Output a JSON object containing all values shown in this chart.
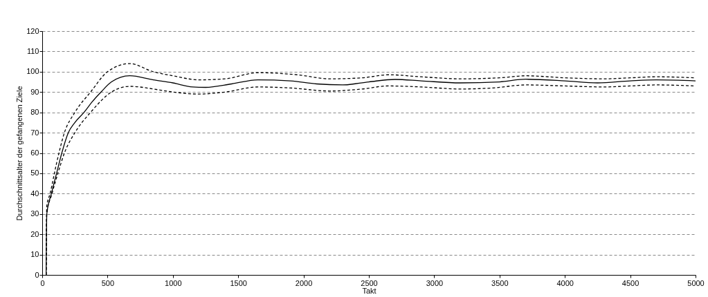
{
  "chart_data": {
    "type": "line",
    "xlabel": "Takt",
    "ylabel": "Durchschnittsalter der gefangenen Ziele",
    "xlim": [
      0,
      5000
    ],
    "ylim": [
      0,
      120
    ],
    "xticks": [
      0,
      500,
      1000,
      1500,
      2000,
      2500,
      3000,
      3500,
      4000,
      4500,
      5000
    ],
    "yticks": [
      0,
      10,
      20,
      30,
      40,
      50,
      60,
      70,
      80,
      90,
      100,
      110,
      120
    ],
    "grid": "y",
    "marker": "none",
    "series": [
      {
        "color": "#000000",
        "line_style": "solid",
        "x": [
          30,
          35,
          70,
          110,
          150,
          200,
          250,
          320,
          380,
          450,
          530,
          670,
          850,
          1000,
          1150,
          1250,
          1450,
          1650,
          1900,
          2100,
          2300,
          2500,
          2700,
          2900,
          3200,
          3500,
          3700,
          4000,
          4250,
          4500,
          4700,
          5000
        ],
        "values": [
          0,
          30,
          40,
          50,
          60,
          70,
          75,
          80,
          85,
          90,
          95,
          98,
          96,
          94.5,
          92.5,
          92.3,
          94,
          96,
          95.5,
          94,
          93.5,
          95,
          96.2,
          95.5,
          94.5,
          95,
          96.3,
          95.5,
          94.5,
          95.5,
          96,
          95.5
        ]
      },
      {
        "color": "#000000",
        "line_style": "dashed",
        "x": [
          30,
          35,
          60,
          110,
          170,
          250,
          370,
          500,
          670,
          850,
          1000,
          1200,
          1400,
          1650,
          1950,
          2200,
          2450,
          2650,
          2900,
          3200,
          3500,
          3700,
          4000,
          4300,
          4500,
          4700,
          5000
        ],
        "values": [
          0,
          34,
          40,
          55,
          70,
          80,
          90,
          100,
          104,
          100,
          98,
          96,
          96.5,
          99.5,
          98.5,
          96.5,
          97,
          98.5,
          97.5,
          96.5,
          97,
          98,
          97,
          96.5,
          97,
          97.5,
          97
        ]
      },
      {
        "color": "#000000",
        "line_style": "dashed",
        "x": [
          30,
          35,
          75,
          120,
          170,
          250,
          370,
          530,
          670,
          900,
          1000,
          1200,
          1400,
          1650,
          1900,
          2200,
          2450,
          2650,
          2900,
          3200,
          3450,
          3700,
          4000,
          4300,
          4500,
          4700,
          5000
        ],
        "values": [
          0,
          30,
          40,
          50,
          60,
          70,
          80,
          90,
          92.8,
          91,
          90,
          89,
          90,
          92.5,
          92,
          90.5,
          91.5,
          93,
          92.5,
          91.5,
          92,
          93.5,
          93,
          92.5,
          93,
          93.5,
          93
        ]
      }
    ]
  }
}
